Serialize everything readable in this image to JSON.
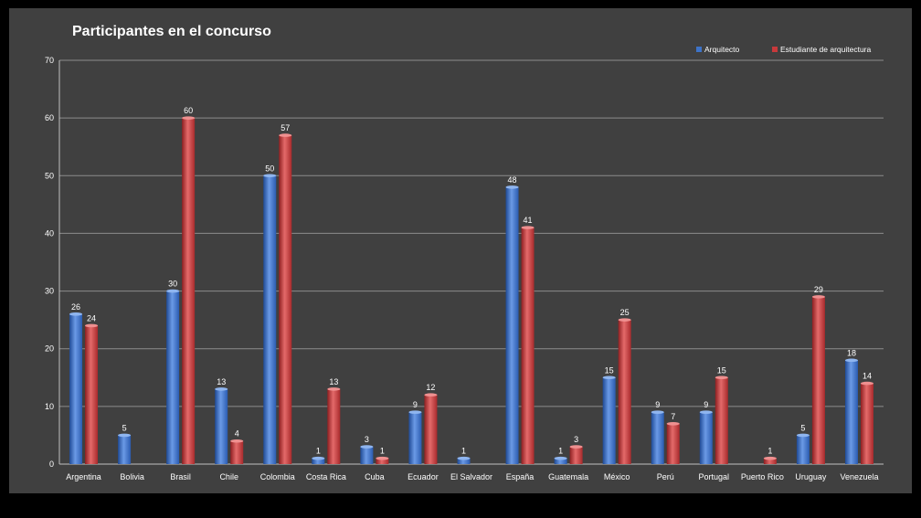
{
  "chart_data": {
    "type": "bar",
    "title": "Participantes en el concurso",
    "categories": [
      "Argentina",
      "Bolivia",
      "Brasil",
      "Chile",
      "Colombia",
      "Costa Rica",
      "Cuba",
      "Ecuador",
      "El Salvador",
      "España",
      "Guatemala",
      "México",
      "Perú",
      "Portugal",
      "Puerto Rico",
      "Uruguay",
      "Venezuela"
    ],
    "series": [
      {
        "name": "Arquitecto",
        "color": "#3d73c8",
        "values": [
          26,
          5,
          30,
          13,
          50,
          1,
          3,
          9,
          1,
          48,
          1,
          15,
          9,
          9,
          null,
          5,
          18
        ]
      },
      {
        "name": "Estudiante de arquitectura",
        "color": "#c8393b",
        "values": [
          24,
          null,
          60,
          4,
          57,
          13,
          1,
          12,
          null,
          41,
          3,
          25,
          7,
          15,
          1,
          29,
          14
        ]
      }
    ],
    "yticks": [
      "0",
      "10",
      "20",
      "30",
      "40",
      "50",
      "60",
      "70"
    ],
    "ylim": [
      0,
      70
    ],
    "xlabel": "",
    "ylabel": "",
    "grid": true,
    "legend_position": "top-right",
    "data_labels": true
  }
}
